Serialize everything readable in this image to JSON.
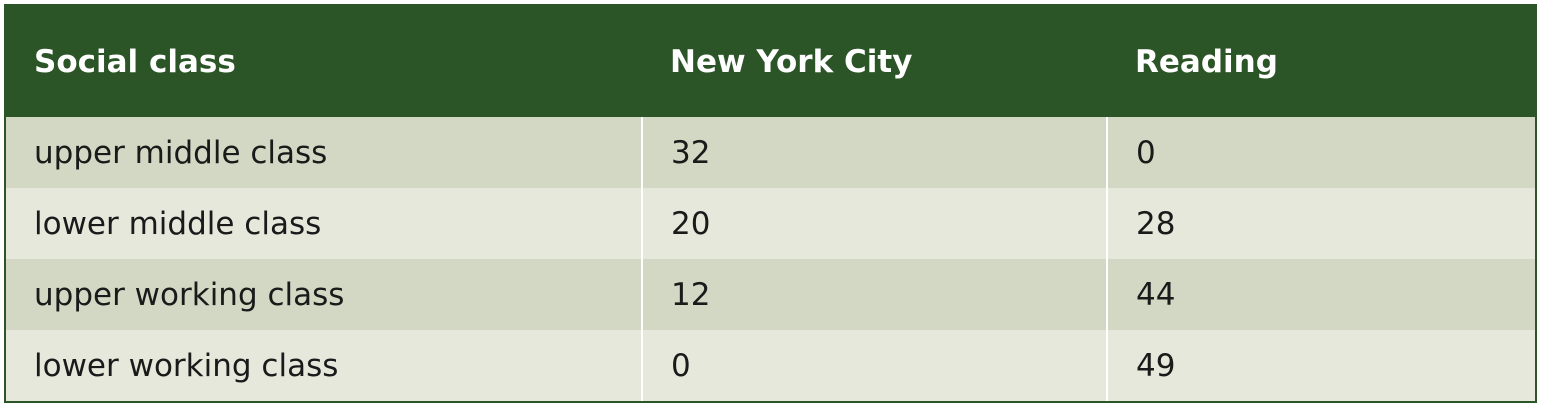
{
  "table": {
    "headers": [
      "Social class",
      "New York City",
      "Reading"
    ],
    "rows": [
      [
        "upper middle class",
        "32",
        "0"
      ],
      [
        "lower middle class",
        "20",
        "28"
      ],
      [
        "upper working class",
        "12",
        "44"
      ],
      [
        "lower working class",
        "0",
        "49"
      ]
    ]
  },
  "colors": {
    "header_bg": "#2b5427",
    "row_odd": "#d2d8c3",
    "row_even": "#e6e8dc"
  }
}
